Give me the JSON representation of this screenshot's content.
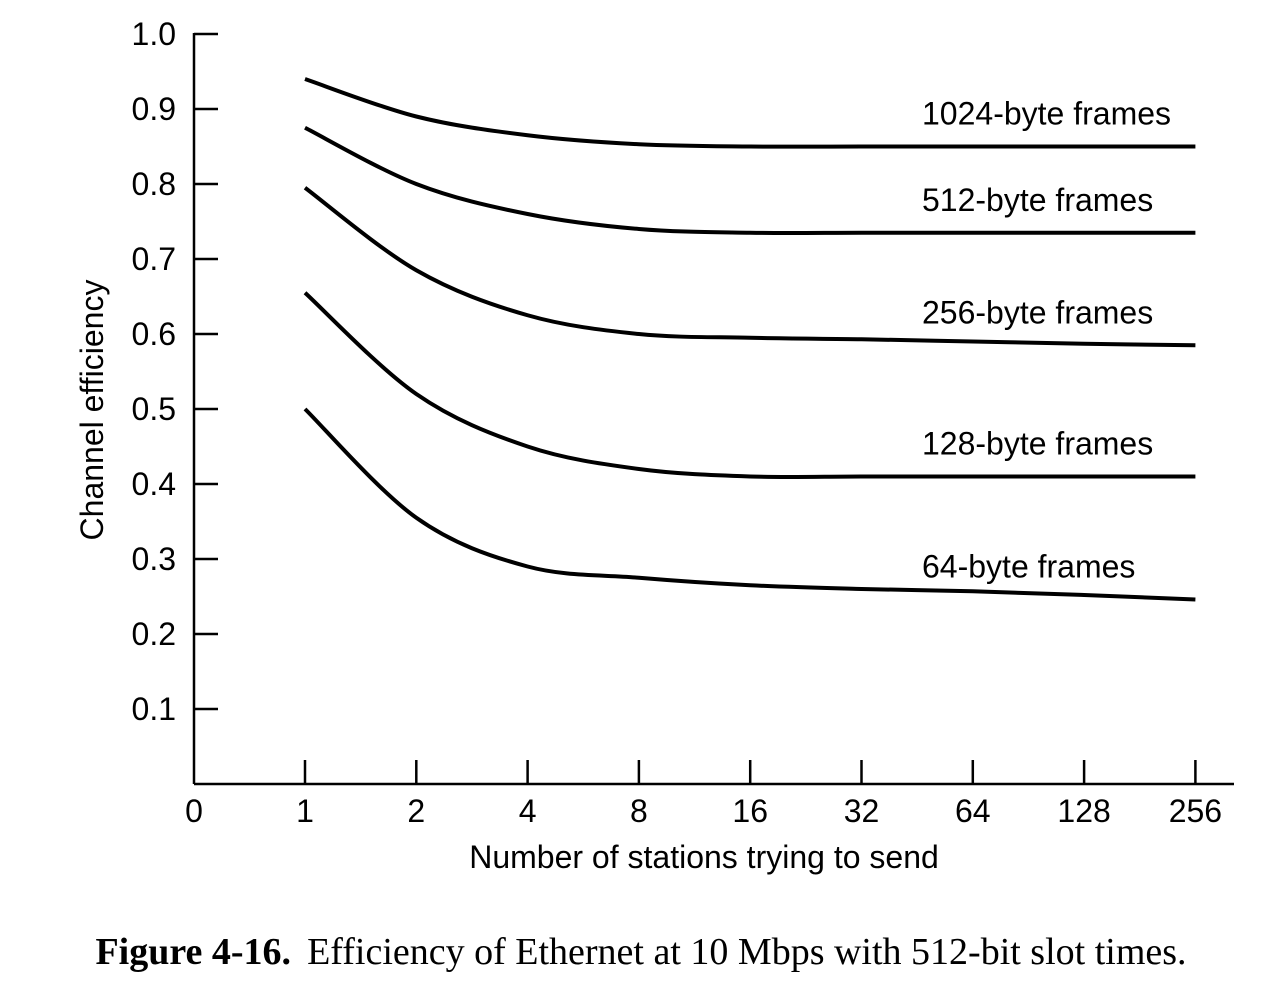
{
  "chart_data": {
    "type": "line",
    "xlabel": "Number of stations trying to send",
    "ylabel": "Channel efficiency",
    "x_tick_labels": [
      "0",
      "1",
      "2",
      "4",
      "8",
      "16",
      "32",
      "64",
      "128",
      "256"
    ],
    "y_tick_labels": [
      "0.1",
      "0.2",
      "0.3",
      "0.4",
      "0.5",
      "0.6",
      "0.7",
      "0.8",
      "0.9",
      "1.0"
    ],
    "ylim": [
      0,
      1.0
    ],
    "x_scale": "log2",
    "grid": false,
    "x": [
      1,
      2,
      4,
      8,
      16,
      32,
      64,
      128,
      256
    ],
    "series": [
      {
        "name": "1024-byte frames",
        "values": [
          0.94,
          0.89,
          0.865,
          0.853,
          0.85,
          0.85,
          0.85,
          0.85,
          0.85
        ]
      },
      {
        "name": "512-byte frames",
        "values": [
          0.875,
          0.8,
          0.76,
          0.74,
          0.735,
          0.735,
          0.735,
          0.735,
          0.735
        ]
      },
      {
        "name": "256-byte frames",
        "values": [
          0.795,
          0.685,
          0.625,
          0.6,
          0.595,
          0.593,
          0.59,
          0.587,
          0.585
        ]
      },
      {
        "name": "128-byte frames",
        "values": [
          0.655,
          0.52,
          0.45,
          0.42,
          0.41,
          0.41,
          0.41,
          0.41,
          0.41
        ]
      },
      {
        "name": "64-byte frames",
        "values": [
          0.5,
          0.355,
          0.29,
          0.275,
          0.265,
          0.26,
          0.257,
          0.252,
          0.246
        ]
      }
    ]
  },
  "caption": {
    "figure_number": "Figure 4-16.",
    "text": "Efficiency of Ethernet at 10 Mbps with 512-bit slot times."
  }
}
